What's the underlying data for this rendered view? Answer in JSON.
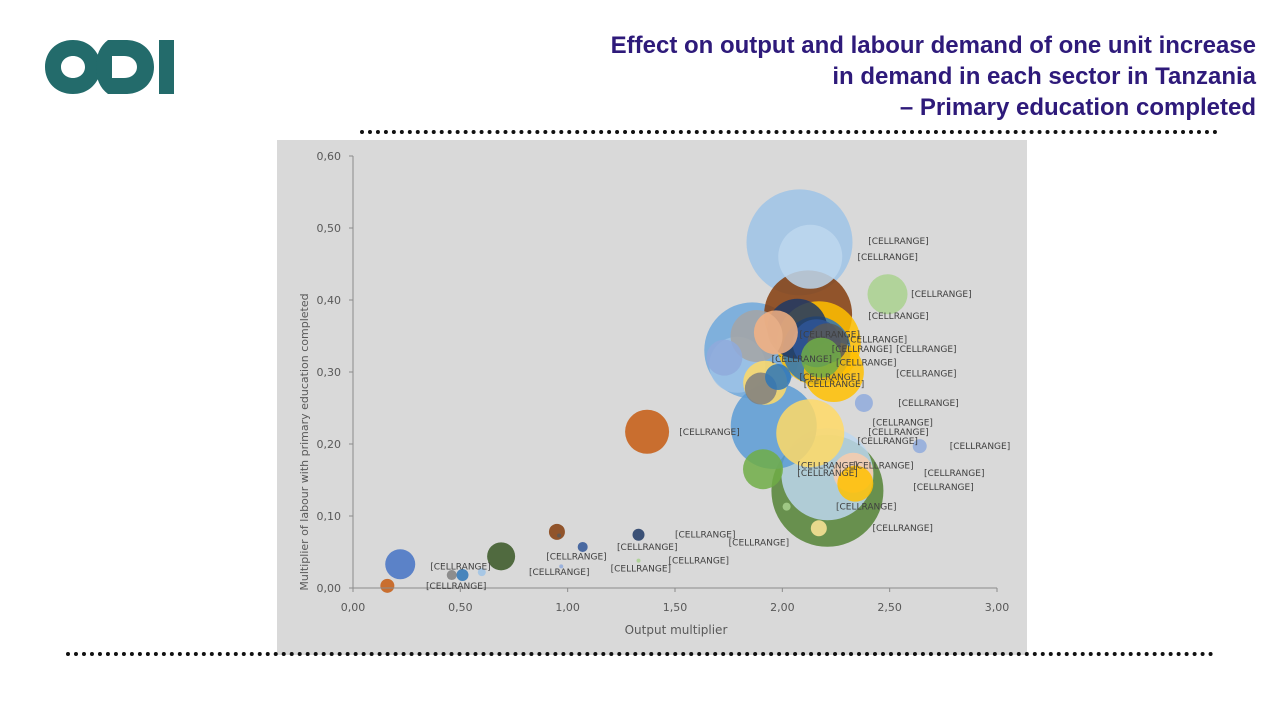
{
  "title": {
    "line1": "Effect on output and labour demand of one unit increase",
    "line2": "in demand in each sector in Tanzania",
    "line3": "– Primary education completed"
  },
  "colors": {
    "title": "#2e1a7a",
    "logo": "#236b6b",
    "plot_background": "#d9d9d9",
    "gridline": "#bfbfbf"
  },
  "chart_data": {
    "type": "bubble",
    "xlabel": "Output multiplier",
    "ylabel": "Multiplier of labour with primary education completed",
    "xlim": [
      0,
      3
    ],
    "ylim": [
      0,
      0.6
    ],
    "xticks": [
      "0,00",
      "0,50",
      "1,00",
      "1,50",
      "2,00",
      "2,50",
      "3,00"
    ],
    "yticks": [
      "0,00",
      "0,10",
      "0,20",
      "0,30",
      "0,40",
      "0,50",
      "0,60"
    ],
    "grid": false,
    "legend": "none",
    "points": [
      {
        "x": 2.21,
        "y": 0.135,
        "size": 56,
        "color": "#548235",
        "label": "[CELLRANGE]"
      },
      {
        "x": 2.08,
        "y": 0.48,
        "size": 53,
        "color": "#9dc3e6",
        "label": "[CELLRANGE]"
      },
      {
        "x": 2.21,
        "y": 0.158,
        "size": 46,
        "color": "#bdd7ee",
        "label": "[CELLRANGE]"
      },
      {
        "x": 1.86,
        "y": 0.33,
        "size": 48,
        "color": "#6fa8dc",
        "label": "[CELLRANGE]"
      },
      {
        "x": 1.96,
        "y": 0.225,
        "size": 43,
        "color": "#5b9bd5",
        "label": "[CELLRANGE]"
      },
      {
        "x": 2.12,
        "y": 0.38,
        "size": 44,
        "color": "#843c0c",
        "label": "[CELLRANGE]"
      },
      {
        "x": 2.17,
        "y": 0.34,
        "size": 42,
        "color": "#ffc000",
        "label": "[CELLRANGE]"
      },
      {
        "x": 2.13,
        "y": 0.215,
        "size": 34,
        "color": "#ffd966",
        "label": "[CELLRANGE]"
      },
      {
        "x": 2.13,
        "y": 0.46,
        "size": 32,
        "color": "#bdd7ee",
        "label": "[CELLRANGE]"
      },
      {
        "x": 2.07,
        "y": 0.36,
        "size": 30,
        "color": "#1f3864",
        "label": "[CELLRANGE]"
      },
      {
        "x": 2.24,
        "y": 0.3,
        "size": 30,
        "color": "#ffc000",
        "label": "[CELLRANGE]"
      },
      {
        "x": 2.16,
        "y": 0.33,
        "size": 34,
        "color": "#2e75b6",
        "label": "[CELLRANGE]"
      },
      {
        "x": 1.79,
        "y": 0.31,
        "size": 28,
        "color": "#9dc3e6",
        "label": "[CELLRANGE]"
      },
      {
        "x": 1.88,
        "y": 0.35,
        "size": 26,
        "color": "#a5a5a5",
        "label": "[CELLRANGE]"
      },
      {
        "x": 1.97,
        "y": 0.355,
        "size": 22,
        "color": "#f4b183",
        "label": "[CELLRANGE]"
      },
      {
        "x": 2.16,
        "y": 0.34,
        "size": 24,
        "color": "#2f5597",
        "label": "[CELLRANGE]"
      },
      {
        "x": 2.21,
        "y": 0.34,
        "size": 20,
        "color": "#595959",
        "label": "[CELLRANGE]"
      },
      {
        "x": 2.18,
        "y": 0.32,
        "size": 20,
        "color": "#70ad47",
        "label": "[CELLRANGE]"
      },
      {
        "x": 1.92,
        "y": 0.285,
        "size": 22,
        "color": "#ffd966",
        "label": "[CELLRANGE]"
      },
      {
        "x": 1.91,
        "y": 0.165,
        "size": 20,
        "color": "#70ad47",
        "label": "[CELLRANGE]"
      },
      {
        "x": 2.49,
        "y": 0.408,
        "size": 20,
        "color": "#a9d18e",
        "label": "[CELLRANGE]"
      },
      {
        "x": 1.73,
        "y": 0.32,
        "size": 18,
        "color": "#8faadc",
        "label": "[CELLRANGE]"
      },
      {
        "x": 1.37,
        "y": 0.217,
        "size": 22,
        "color": "#c55a11",
        "label": "[CELLRANGE]"
      },
      {
        "x": 1.9,
        "y": 0.277,
        "size": 16,
        "color": "#7f7f7f",
        "label": "[CELLRANGE]"
      },
      {
        "x": 1.98,
        "y": 0.293,
        "size": 13,
        "color": "#2e75b6",
        "label": "[CELLRANGE]"
      },
      {
        "x": 2.33,
        "y": 0.16,
        "size": 20,
        "color": "#f8cbad",
        "label": "[CELLRANGE]"
      },
      {
        "x": 2.34,
        "y": 0.145,
        "size": 18,
        "color": "#ffc000",
        "label": "[CELLRANGE]"
      },
      {
        "x": 2.38,
        "y": 0.257,
        "size": 9,
        "color": "#8faadc",
        "label": "[CELLRANGE]"
      },
      {
        "x": 2.64,
        "y": 0.197,
        "size": 7,
        "color": "#8faadc",
        "label": "[CELLRANGE]"
      },
      {
        "x": 2.17,
        "y": 0.083,
        "size": 8,
        "color": "#ffe699",
        "label": "[CELLRANGE]"
      },
      {
        "x": 2.02,
        "y": 0.113,
        "size": 4,
        "color": "#a9d18e",
        "label": "[CELLRANGE]"
      },
      {
        "x": 0.22,
        "y": 0.033,
        "size": 15,
        "color": "#4472c4",
        "label": "[CELLRANGE]"
      },
      {
        "x": 0.69,
        "y": 0.044,
        "size": 14,
        "color": "#375623",
        "label": "[CELLRANGE]"
      },
      {
        "x": 0.95,
        "y": 0.078,
        "size": 8,
        "color": "#843c0c",
        "label": "[CELLRANGE]"
      },
      {
        "x": 1.33,
        "y": 0.074,
        "size": 6,
        "color": "#1f3864",
        "label": "[CELLRANGE]"
      },
      {
        "x": 1.07,
        "y": 0.057,
        "size": 5,
        "color": "#2f5597",
        "label": "[CELLRANGE]"
      },
      {
        "x": 0.51,
        "y": 0.018,
        "size": 6,
        "color": "#2e75b6",
        "label": "[CELLRANGE]"
      },
      {
        "x": 0.46,
        "y": 0.018,
        "size": 5,
        "color": "#7f7f7f",
        "label": "[CELLRANGE]"
      },
      {
        "x": 0.6,
        "y": 0.022,
        "size": 4,
        "color": "#9dc3e6",
        "label": "[CELLRANGE]"
      },
      {
        "x": 0.16,
        "y": 0.003,
        "size": 7,
        "color": "#c55a11",
        "label": "[CELLRANGE]"
      },
      {
        "x": 1.33,
        "y": 0.038,
        "size": 2,
        "color": "#a9d18e",
        "label": "[CELLRANGE]"
      },
      {
        "x": 0.97,
        "y": 0.03,
        "size": 2,
        "color": "#8faadc",
        "label": "[CELLRANGE]"
      },
      {
        "x": 0.96,
        "y": 0.073,
        "size": 2,
        "color": "#595959",
        "label": ""
      }
    ],
    "labels": [
      {
        "text": "[CELLRANGE]",
        "x": 2.4,
        "y": 0.482
      },
      {
        "text": "[CELLRANGE]",
        "x": 2.35,
        "y": 0.46
      },
      {
        "text": "[CELLRANGE]",
        "x": 2.6,
        "y": 0.408
      },
      {
        "text": "[CELLRANGE]",
        "x": 2.4,
        "y": 0.378
      },
      {
        "text": "[CELLRANGE]",
        "x": 2.08,
        "y": 0.352
      },
      {
        "text": "[CELLRANGE]",
        "x": 2.3,
        "y": 0.345
      },
      {
        "text": "[CELLRANGE]",
        "x": 2.23,
        "y": 0.332
      },
      {
        "text": "[CELLRANGE]",
        "x": 2.53,
        "y": 0.332
      },
      {
        "text": "[CELLRANGE]",
        "x": 2.25,
        "y": 0.313
      },
      {
        "text": "[CELLRANGE]",
        "x": 1.95,
        "y": 0.318
      },
      {
        "text": "[CELLRANGE]",
        "x": 2.08,
        "y": 0.293
      },
      {
        "text": "[CELLRANGE]",
        "x": 2.53,
        "y": 0.298
      },
      {
        "text": "[CELLRANGE]",
        "x": 2.1,
        "y": 0.283
      },
      {
        "text": "[CELLRANGE]",
        "x": 2.54,
        "y": 0.257
      },
      {
        "text": "[CELLRANGE]",
        "x": 1.52,
        "y": 0.217
      },
      {
        "text": "[CELLRANGE]",
        "x": 2.42,
        "y": 0.23
      },
      {
        "text": "[CELLRANGE]",
        "x": 2.4,
        "y": 0.217
      },
      {
        "text": "[CELLRANGE]",
        "x": 2.35,
        "y": 0.204
      },
      {
        "text": "[CELLRANGE]",
        "x": 2.78,
        "y": 0.197
      },
      {
        "text": "[CELLRANGE]",
        "x": 2.07,
        "y": 0.17
      },
      {
        "text": "[CELLRANGE]",
        "x": 2.33,
        "y": 0.17
      },
      {
        "text": "[CELLRANGE]",
        "x": 2.07,
        "y": 0.16
      },
      {
        "text": "[CELLRANGE]",
        "x": 2.66,
        "y": 0.16
      },
      {
        "text": "[CELLRANGE]",
        "x": 2.61,
        "y": 0.14
      },
      {
        "text": "[CELLRANGE]",
        "x": 2.25,
        "y": 0.113
      },
      {
        "text": "[CELLRANGE]",
        "x": 2.42,
        "y": 0.083
      },
      {
        "text": "[CELLRANGE]",
        "x": 1.5,
        "y": 0.074
      },
      {
        "text": "[CELLRANGE]",
        "x": 1.75,
        "y": 0.063
      },
      {
        "text": "[CELLRANGE]",
        "x": 1.23,
        "y": 0.057
      },
      {
        "text": "[CELLRANGE]",
        "x": 0.9,
        "y": 0.044
      },
      {
        "text": "[CELLRANGE]",
        "x": 1.47,
        "y": 0.038
      },
      {
        "text": "[CELLRANGE]",
        "x": 0.36,
        "y": 0.03
      },
      {
        "text": "[CELLRANGE]",
        "x": 1.2,
        "y": 0.027
      },
      {
        "text": "[CELLRANGE]",
        "x": 0.82,
        "y": 0.022
      },
      {
        "text": "[CELLRANGE]",
        "x": 0.34,
        "y": 0.003
      }
    ]
  }
}
